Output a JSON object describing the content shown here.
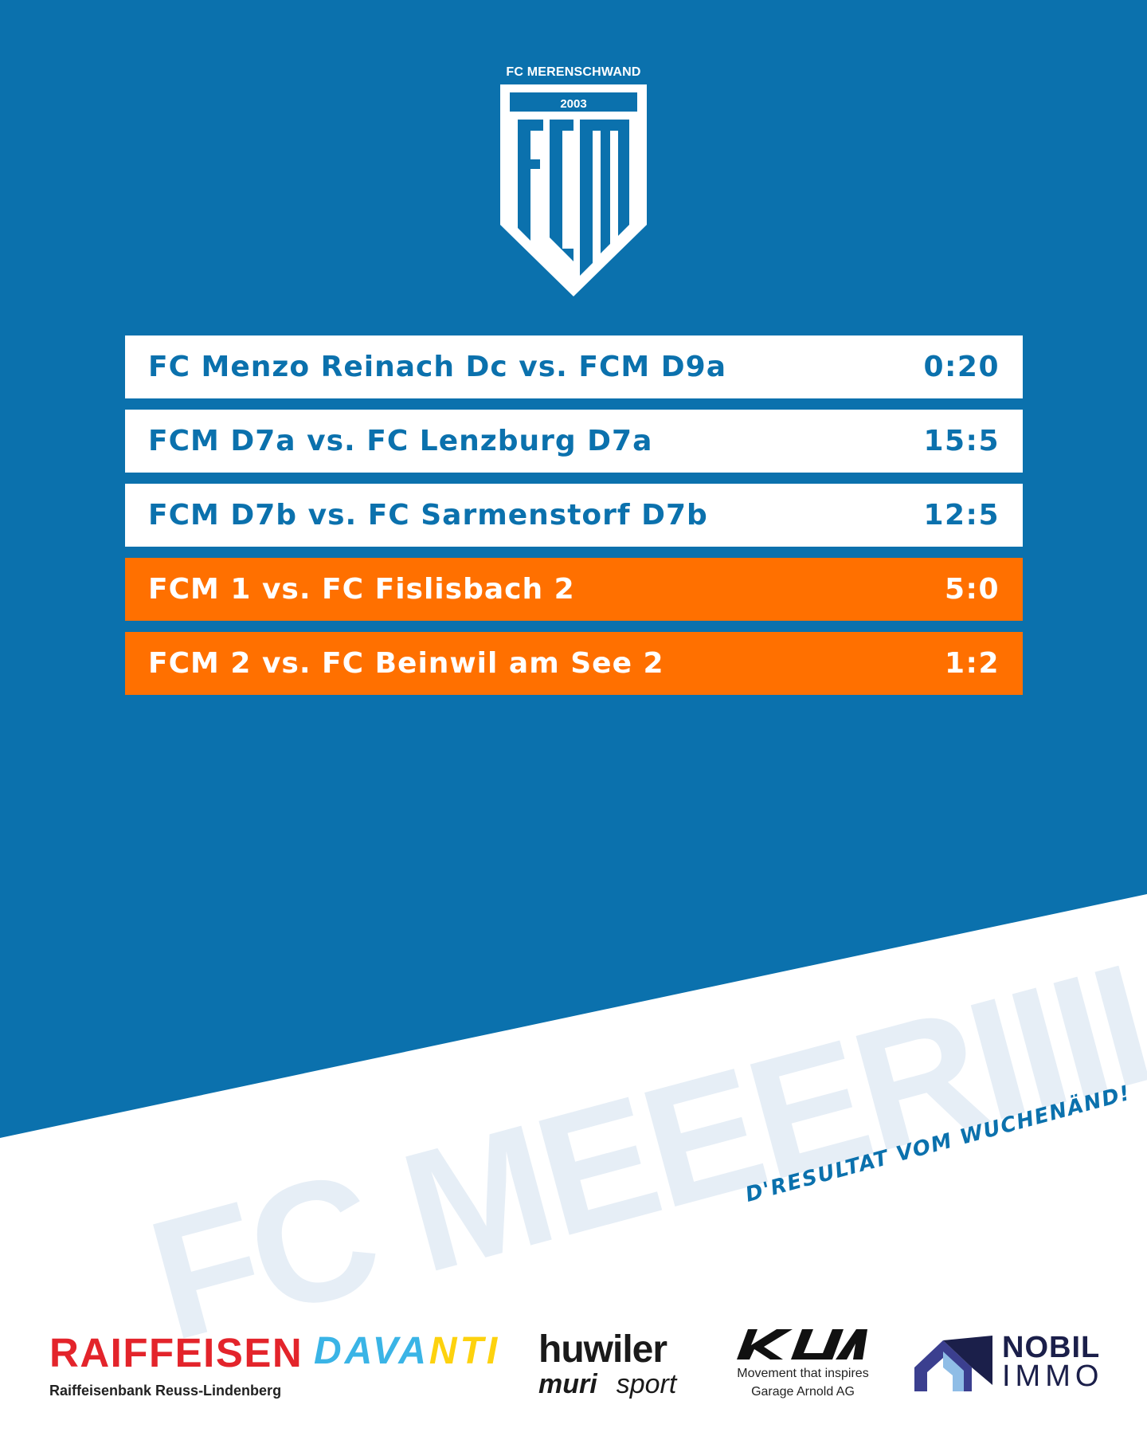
{
  "colors": {
    "blue": "#0b71ad",
    "orange": "#ff7000",
    "white": "#ffffff",
    "headline_tint": "#e6eef6"
  },
  "logo": {
    "club_name": "FC MERENSCHWAND",
    "year": "2003",
    "letters": "FCM"
  },
  "results": [
    {
      "match": "FC Menzo Reinach Dc vs. FCM D9a",
      "score": "0:20",
      "style": "light"
    },
    {
      "match": "FCM D7a vs. FC Lenzburg D7a",
      "score": "15:5",
      "style": "light"
    },
    {
      "match": "FCM D7b vs. FC Sarmenstorf D7b",
      "score": "12:5",
      "style": "light"
    },
    {
      "match": "FCM 1 vs. FC Fislisbach 2",
      "score": "5:0",
      "style": "accent"
    },
    {
      "match": "FCM 2 vs. FC Beinwil am See 2",
      "score": "1:2",
      "style": "accent"
    }
  ],
  "headline": "FC MEEERIIII",
  "tagline": "D'RESULTAT VOM WUCHENÄND!",
  "sponsors": {
    "raiffeisen": {
      "name": "RAIFFEISEN",
      "sub": "Raiffeisenbank Reuss-Lindenberg"
    },
    "davanti": {
      "part1": "DAVA",
      "part2": "NTI"
    },
    "huwiler": {
      "top": "huwiler",
      "muri": "muri",
      "sport": "sport"
    },
    "kia": {
      "line1": "Movement that inspires",
      "line2": "Garage Arnold AG"
    },
    "nobil": {
      "line1": "NOBIL",
      "line2": "IMMO"
    }
  }
}
